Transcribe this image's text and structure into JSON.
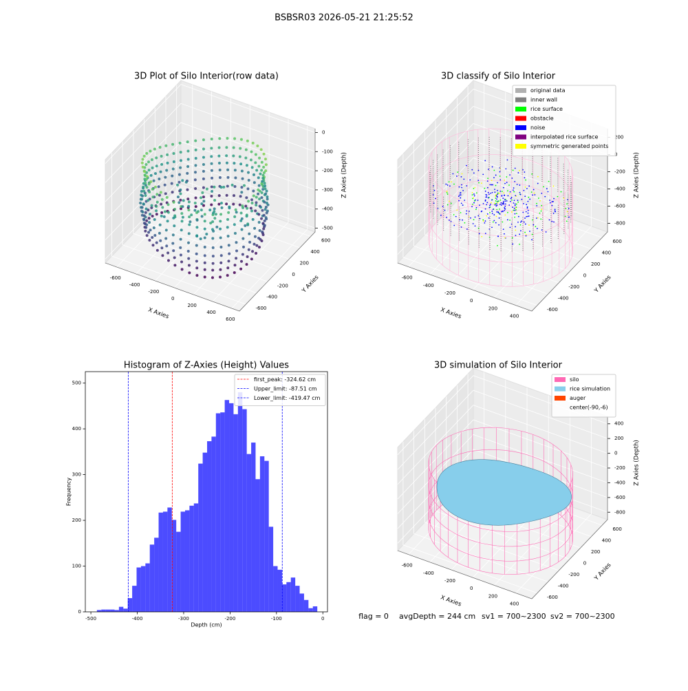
{
  "suptitle": "BSBSR03 2026-05-21 21:25:52",
  "chart_data": [
    {
      "type": "scatter3d",
      "title": "3D Plot of Silo Interior(row data)",
      "xlabel": "X Axies",
      "ylabel": "Y Axies",
      "zlabel": "Z Axies (Depth)",
      "xlim": [
        -720,
        680
      ],
      "ylim": [
        -720,
        680
      ],
      "zlim": [
        -520,
        20
      ],
      "xticks": [
        -600,
        -400,
        -200,
        0,
        200,
        400,
        600
      ],
      "yticks": [
        -600,
        -400,
        -200,
        0,
        200,
        400,
        600
      ],
      "zticks": [
        0,
        -100,
        -200,
        -300,
        -400,
        -500
      ]
    },
    {
      "type": "scatter3d",
      "title": "3D classify of Silo Interior",
      "xlabel": "X Axies",
      "ylabel": "Y Axies",
      "zlabel": "Z Axies (Depth)",
      "xlim": [
        -700,
        550
      ],
      "ylim": [
        -700,
        700
      ],
      "zlim": [
        -900,
        300
      ],
      "xticks": [
        -600,
        -400,
        -200,
        0,
        200,
        400
      ],
      "yticks": [
        -600,
        -400,
        -200,
        0,
        200,
        400,
        600
      ],
      "zticks": [
        200,
        0,
        -200,
        -400,
        -600,
        -800
      ],
      "legend_entries": [
        {
          "name": "original data",
          "color": "#b0b0b0"
        },
        {
          "name": "inner wall",
          "color": "#808080"
        },
        {
          "name": "rice surface",
          "color": "#00ff00"
        },
        {
          "name": "obstacle",
          "color": "#ff0000"
        },
        {
          "name": "noise",
          "color": "#0000ff"
        },
        {
          "name": "interpolated rice surface",
          "color": "#800080"
        },
        {
          "name": "symmetric generated points",
          "color": "#ffff00"
        }
      ]
    },
    {
      "type": "histogram",
      "title": "Histogram of Z-Axies (Height) Values",
      "xlabel": "Depth (cm)",
      "ylabel": "Frequency",
      "color": "#0000ff",
      "bins": [
        -487,
        -477.5,
        -468,
        -458.5,
        -449,
        -439.5,
        -430,
        -420.5,
        -411,
        -401.5,
        -392,
        -382.5,
        -373,
        -363.5,
        -354,
        -344.5,
        -335,
        -325.5,
        -316,
        -306.5,
        -297,
        -287.5,
        -278,
        -268.5,
        -259,
        -249.5,
        -240,
        -230.5,
        -221,
        -211.5,
        -202,
        -192.5,
        -183,
        -173.5,
        -164,
        -154.5,
        -145,
        -135.5,
        -126,
        -116.5,
        -107,
        -97.5,
        -88,
        -78.5,
        -69,
        -59.5,
        -50,
        -40.5,
        -31,
        -21.5,
        -12
      ],
      "values": [
        4,
        5,
        5,
        5,
        4,
        11,
        7,
        30,
        57,
        97,
        100,
        106,
        147,
        162,
        217,
        219,
        228,
        201,
        175,
        219,
        222,
        232,
        237,
        324,
        348,
        373,
        383,
        434,
        436,
        463,
        456,
        432,
        480,
        443,
        345,
        370,
        290,
        340,
        330,
        186,
        100,
        92,
        60,
        65,
        75,
        57,
        40,
        26,
        8,
        12
      ],
      "xlim": [
        -512,
        10
      ],
      "ylim": [
        0,
        525
      ],
      "xticks": [
        -500,
        -400,
        -300,
        -200,
        -100,
        0
      ],
      "yticks": [
        0,
        100,
        200,
        300,
        400,
        500
      ],
      "vlines": [
        {
          "name": "first_peak: -324.62 cm",
          "value": -324.62,
          "color": "#ff0000"
        },
        {
          "name": "Upper_limit: -87.51 cm",
          "value": -87.51,
          "color": "#0000ff"
        },
        {
          "name": "Lower_limit: -419.47 cm",
          "value": -419.47,
          "color": "#0000ff"
        }
      ]
    },
    {
      "type": "surface3d",
      "title": "3D simulation of Silo Interior",
      "xlabel": "X Axies",
      "ylabel": "Y Axies",
      "zlabel": "Z Axies (Depth)",
      "xlim": [
        -700,
        550
      ],
      "ylim": [
        -700,
        700
      ],
      "zlim": [
        -900,
        500
      ],
      "xticks": [
        -600,
        -400,
        -200,
        0,
        200,
        400
      ],
      "yticks": [
        -600,
        -400,
        -200,
        0,
        200,
        400,
        600
      ],
      "zticks": [
        400,
        200,
        0,
        -200,
        -400,
        -600,
        -800
      ],
      "legend_entries": [
        {
          "name": "silo",
          "color": "#ff69b4"
        },
        {
          "name": "rice simulation",
          "color": "#87ceeb"
        },
        {
          "name": "auger",
          "color": "#ff4500"
        },
        {
          "name": "center(-90,-6)"
        }
      ]
    }
  ],
  "status": {
    "flag": "flag = 0",
    "avg_depth": "avgDepth = 244 cm",
    "sv1": "sv1 = 700~2300",
    "sv2": "sv2 = 700~2300"
  }
}
